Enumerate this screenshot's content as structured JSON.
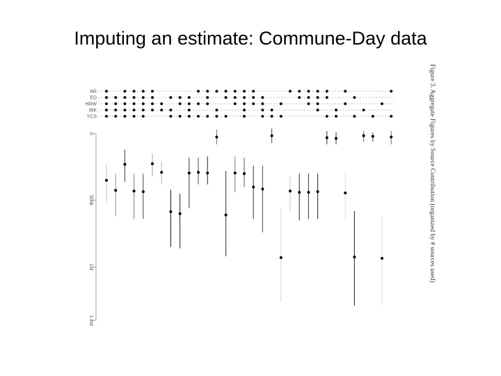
{
  "slide": {
    "title": "Imputing an estimate: Commune-Day data"
  },
  "chart_data": {
    "type": "scatter",
    "caption": "Figure 3. Aggregate Figures by Source Contribution (organized by # sources used)",
    "sources": [
      "AR",
      "ED",
      "HRW",
      "IBK",
      "YCS"
    ],
    "y_tick_labels": [
      "0",
      "500k",
      "1M",
      "1.4M"
    ],
    "y_ticks": [
      0,
      500000,
      1000000,
      1400000
    ],
    "ylim": [
      0,
      1400000
    ],
    "grid": "dotted rows for sources",
    "estimates": [
      {
        "sources": [
          "AR",
          "ED",
          "HRW",
          "IBK",
          "YCS"
        ],
        "value": 350000,
        "low": 230000,
        "high": 520000,
        "interval_color": "#c8c8c8"
      },
      {
        "sources": [
          "ED",
          "HRW",
          "IBK",
          "YCS"
        ],
        "value": 425000,
        "low": 300000,
        "high": 620000,
        "interval_color": "#9a9a9a"
      },
      {
        "sources": [
          "AR",
          "ED",
          "HRW",
          "IBK",
          "YCS"
        ],
        "value": 230000,
        "low": 120000,
        "high": 360000,
        "interval_color": "#444444"
      },
      {
        "sources": [
          "AR",
          "ED",
          "HRW",
          "IBK",
          "YCS"
        ],
        "value": 430000,
        "low": 300000,
        "high": 640000,
        "interval_color": "#888888"
      },
      {
        "sources": [
          "AR",
          "ED",
          "HRW",
          "IBK",
          "YCS"
        ],
        "value": 435000,
        "low": 300000,
        "high": 640000,
        "interval_color": "#555555"
      },
      {
        "sources": [
          "AR",
          "ED",
          "HRW",
          "IBK"
        ],
        "value": 225000,
        "low": 150000,
        "high": 320000,
        "interval_color": "#aaaaaa"
      },
      {
        "sources": [
          "HRW",
          "IBK"
        ],
        "value": 290000,
        "low": 210000,
        "high": 380000,
        "interval_color": "#bbbbbb"
      },
      {
        "sources": [
          "ED",
          "IBK",
          "YCS"
        ],
        "value": 585000,
        "low": 420000,
        "high": 850000,
        "interval_color": "#222222"
      },
      {
        "sources": [
          "ED",
          "HRW",
          "YCS"
        ],
        "value": 600000,
        "low": 450000,
        "high": 860000,
        "interval_color": "#333333"
      },
      {
        "sources": [
          "ED",
          "HRW",
          "IBK",
          "YCS"
        ],
        "value": 295000,
        "low": 180000,
        "high": 560000,
        "interval_color": "#444444"
      },
      {
        "sources": [
          "AR",
          "HRW",
          "YCS"
        ],
        "value": 290000,
        "low": 180000,
        "high": 380000,
        "interval_color": "#555555"
      },
      {
        "sources": [
          "AR",
          "ED",
          "HRW",
          "YCS"
        ],
        "value": 295000,
        "low": 170000,
        "high": 380000,
        "interval_color": "#333333"
      },
      {
        "sources": [
          "AR",
          "IBK",
          "YCS"
        ],
        "value": 25000,
        "low": -30000,
        "high": 80000,
        "interval_color": "#777777"
      },
      {
        "sources": [
          "AR",
          "ED",
          "YCS"
        ],
        "value": 610000,
        "low": 280000,
        "high": 920000,
        "interval_color": "#444444"
      },
      {
        "sources": [
          "AR",
          "ED",
          "HRW"
        ],
        "value": 295000,
        "low": 170000,
        "high": 440000,
        "interval_color": "#888888"
      },
      {
        "sources": [
          "AR",
          "ED",
          "HRW",
          "IBK",
          "YCS"
        ],
        "value": 300000,
        "low": 180000,
        "high": 400000,
        "interval_color": "#666666"
      },
      {
        "sources": [
          "AR",
          "ED",
          "HRW"
        ],
        "value": 400000,
        "low": 240000,
        "high": 640000,
        "interval_color": "#444444"
      },
      {
        "sources": [
          "ED",
          "HRW",
          "IBK",
          "YCS"
        ],
        "value": 415000,
        "low": 240000,
        "high": 740000,
        "interval_color": "#555555"
      },
      {
        "sources": [
          "IBK",
          "YCS"
        ],
        "value": 15000,
        "low": -40000,
        "high": 70000,
        "interval_color": "#555555"
      },
      {
        "sources": [
          "HRW",
          "YCS"
        ],
        "value": 930000,
        "low": 560000,
        "high": 1260000,
        "interval_color": "#d8d8d8"
      },
      {
        "sources": [
          "AR"
        ],
        "value": 430000,
        "low": 320000,
        "high": 580000,
        "interval_color": "#cccccc"
      },
      {
        "sources": [
          "AR",
          "ED"
        ],
        "value": 440000,
        "low": 300000,
        "high": 650000,
        "interval_color": "#333333"
      },
      {
        "sources": [
          "AR",
          "ED",
          "HRW"
        ],
        "value": 440000,
        "low": 300000,
        "high": 640000,
        "interval_color": "#444444"
      },
      {
        "sources": [
          "AR",
          "ED",
          "HRW",
          "IBK"
        ],
        "value": 435000,
        "low": 300000,
        "high": 640000,
        "interval_color": "#333333"
      },
      {
        "sources": [
          "AR",
          "ED",
          "YCS"
        ],
        "value": 30000,
        "low": -20000,
        "high": 80000,
        "interval_color": "#444444"
      },
      {
        "sources": [
          "IBK",
          "YCS"
        ],
        "value": 35000,
        "low": -10000,
        "high": 80000,
        "interval_color": "#444444"
      },
      {
        "sources": [
          "AR",
          "HRW"
        ],
        "value": 445000,
        "low": 300000,
        "high": 640000,
        "interval_color": "#dddddd"
      },
      {
        "sources": [
          "ED",
          "YCS"
        ],
        "value": 925000,
        "low": 580000,
        "high": 1290000,
        "interval_color": "#333333"
      },
      {
        "sources": [
          "IBK"
        ],
        "value": 15000,
        "low": -20000,
        "high": 60000,
        "interval_color": "#777777"
      },
      {
        "sources": [
          "YCS"
        ],
        "value": 20000,
        "low": -10000,
        "high": 60000,
        "interval_color": "#555555"
      },
      {
        "sources": [
          "HRW"
        ],
        "value": 935000,
        "low": 620000,
        "high": 1280000,
        "interval_color": "#dddddd"
      },
      {
        "sources": [
          "AR",
          "YCS"
        ],
        "value": 25000,
        "low": -20000,
        "high": 80000,
        "interval_color": "#777777"
      }
    ]
  }
}
